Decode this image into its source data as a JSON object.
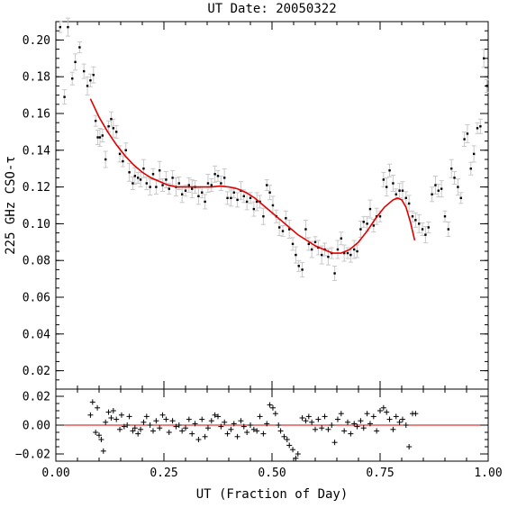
{
  "chart_data": [
    {
      "type": "scatter",
      "panel": "main",
      "title": "UT Date: 20050322",
      "ylabel": "225 GHz CSO-τ",
      "xlabel": "",
      "xlim": [
        0,
        1
      ],
      "ylim": [
        0.01,
        0.21
      ],
      "xticks": [
        0,
        0.25,
        0.5,
        0.75,
        1
      ],
      "yticks": [
        0.02,
        0.04,
        0.06,
        0.08,
        0.1,
        0.12,
        0.14,
        0.16,
        0.18,
        0.2
      ],
      "ytick_labels": [
        "0.02",
        "0.04",
        "0.06",
        "0.08",
        "0.10",
        "0.12",
        "0.14",
        "0.16",
        "0.18",
        "0.20"
      ],
      "grid": false,
      "series": [
        {
          "marker": "point-with-errorbar",
          "color": "#000000",
          "errorbar_color": "#c8c8c8",
          "x": [
            0.01,
            0.02,
            0.028,
            0.038,
            0.045,
            0.055,
            0.065,
            0.073,
            0.08,
            0.087,
            0.092,
            0.097,
            0.102,
            0.108,
            0.115,
            0.122,
            0.128,
            0.133,
            0.14,
            0.148,
            0.155,
            0.162,
            0.17,
            0.178,
            0.183,
            0.19,
            0.196,
            0.203,
            0.21,
            0.218,
            0.225,
            0.232,
            0.24,
            0.247,
            0.255,
            0.262,
            0.27,
            0.278,
            0.285,
            0.292,
            0.3,
            0.308,
            0.315,
            0.322,
            0.33,
            0.338,
            0.345,
            0.352,
            0.36,
            0.368,
            0.375,
            0.382,
            0.39,
            0.397,
            0.405,
            0.412,
            0.42,
            0.428,
            0.435,
            0.442,
            0.45,
            0.458,
            0.465,
            0.472,
            0.48,
            0.488,
            0.495,
            0.502,
            0.51,
            0.517,
            0.525,
            0.532,
            0.54,
            0.548,
            0.555,
            0.562,
            0.57,
            0.578,
            0.585,
            0.592,
            0.6,
            0.607,
            0.615,
            0.622,
            0.63,
            0.638,
            0.645,
            0.652,
            0.66,
            0.667,
            0.675,
            0.682,
            0.69,
            0.697,
            0.705,
            0.712,
            0.72,
            0.727,
            0.735,
            0.742,
            0.75,
            0.758,
            0.765,
            0.772,
            0.78,
            0.787,
            0.795,
            0.802,
            0.81,
            0.817,
            0.825,
            0.832,
            0.84,
            0.848,
            0.855,
            0.862,
            0.87,
            0.878,
            0.885,
            0.892,
            0.9,
            0.908,
            0.915,
            0.922,
            0.93,
            0.937,
            0.945,
            0.952,
            0.96,
            0.967,
            0.975,
            0.982,
            0.99,
            0.997
          ],
          "y": [
            0.207,
            0.169,
            0.207,
            0.179,
            0.188,
            0.196,
            0.183,
            0.175,
            0.178,
            0.181,
            0.156,
            0.147,
            0.147,
            0.148,
            0.135,
            0.153,
            0.157,
            0.152,
            0.15,
            0.138,
            0.134,
            0.14,
            0.128,
            0.122,
            0.126,
            0.125,
            0.124,
            0.13,
            0.122,
            0.12,
            0.127,
            0.12,
            0.129,
            0.121,
            0.124,
            0.119,
            0.125,
            0.12,
            0.122,
            0.116,
            0.118,
            0.121,
            0.119,
            0.12,
            0.115,
            0.117,
            0.112,
            0.122,
            0.121,
            0.127,
            0.126,
            0.122,
            0.125,
            0.114,
            0.114,
            0.117,
            0.113,
            0.118,
            0.115,
            0.112,
            0.114,
            0.108,
            0.112,
            0.112,
            0.104,
            0.121,
            0.117,
            0.11,
            0.104,
            0.098,
            0.096,
            0.103,
            0.097,
            0.089,
            0.083,
            0.077,
            0.075,
            0.097,
            0.089,
            0.086,
            0.09,
            0.087,
            0.083,
            0.086,
            0.082,
            0.084,
            0.073,
            0.086,
            0.092,
            0.084,
            0.084,
            0.083,
            0.086,
            0.085,
            0.097,
            0.101,
            0.1,
            0.108,
            0.099,
            0.104,
            0.104,
            0.124,
            0.12,
            0.129,
            0.122,
            0.116,
            0.118,
            0.118,
            0.114,
            0.111,
            0.104,
            0.102,
            0.1,
            0.097,
            0.094,
            0.098,
            0.116,
            0.121,
            0.118,
            0.119,
            0.104,
            0.097,
            0.13,
            0.125,
            0.12,
            0.114,
            0.146,
            0.149,
            0.13,
            0.138,
            0.152,
            0.153,
            0.19,
            0.175
          ]
        },
        {
          "type": "line",
          "role": "fit",
          "color": "#e00000",
          "x": [
            0.08,
            0.1,
            0.12,
            0.14,
            0.16,
            0.18,
            0.2,
            0.22,
            0.24,
            0.26,
            0.28,
            0.3,
            0.32,
            0.34,
            0.36,
            0.38,
            0.4,
            0.42,
            0.44,
            0.46,
            0.48,
            0.5,
            0.52,
            0.54,
            0.56,
            0.58,
            0.6,
            0.62,
            0.64,
            0.66,
            0.68,
            0.7,
            0.72,
            0.74,
            0.76,
            0.78,
            0.79,
            0.8,
            0.81,
            0.82,
            0.83
          ],
          "y": [
            0.168,
            0.158,
            0.15,
            0.143,
            0.137,
            0.132,
            0.128,
            0.125,
            0.123,
            0.121,
            0.12,
            0.12,
            0.12,
            0.12,
            0.12,
            0.1205,
            0.12,
            0.119,
            0.117,
            0.114,
            0.11,
            0.106,
            0.102,
            0.098,
            0.094,
            0.091,
            0.088,
            0.086,
            0.084,
            0.084,
            0.086,
            0.09,
            0.096,
            0.103,
            0.109,
            0.113,
            0.114,
            0.113,
            0.109,
            0.101,
            0.091
          ]
        }
      ]
    },
    {
      "type": "scatter",
      "panel": "residuals",
      "xlabel": "UT (Fraction of Day)",
      "ylabel": "",
      "xlim": [
        0,
        1
      ],
      "ylim": [
        -0.025,
        0.025
      ],
      "xticks": [
        0,
        0.25,
        0.5,
        0.75,
        1
      ],
      "xtick_labels": [
        "0.00",
        "0.25",
        "0.50",
        "0.75",
        "1.00"
      ],
      "yticks": [
        -0.02,
        0.0,
        0.02
      ],
      "ytick_labels": [
        "−0.02",
        "0.00",
        "0.02"
      ],
      "reference_line": {
        "y": 0,
        "color": "#e00000"
      },
      "grid": false,
      "series": [
        {
          "marker": "plus",
          "color": "#000000",
          "x": [
            0.08,
            0.085,
            0.092,
            0.096,
            0.1,
            0.105,
            0.11,
            0.115,
            0.122,
            0.128,
            0.133,
            0.14,
            0.148,
            0.152,
            0.158,
            0.165,
            0.17,
            0.178,
            0.183,
            0.19,
            0.196,
            0.203,
            0.21,
            0.218,
            0.225,
            0.232,
            0.24,
            0.247,
            0.255,
            0.262,
            0.27,
            0.278,
            0.285,
            0.292,
            0.3,
            0.308,
            0.315,
            0.322,
            0.33,
            0.338,
            0.345,
            0.352,
            0.36,
            0.368,
            0.375,
            0.382,
            0.39,
            0.397,
            0.405,
            0.412,
            0.42,
            0.428,
            0.435,
            0.442,
            0.45,
            0.458,
            0.465,
            0.472,
            0.48,
            0.488,
            0.495,
            0.502,
            0.508,
            0.515,
            0.52,
            0.528,
            0.535,
            0.54,
            0.548,
            0.555,
            0.56,
            0.57,
            0.578,
            0.585,
            0.592,
            0.6,
            0.607,
            0.615,
            0.622,
            0.63,
            0.638,
            0.645,
            0.652,
            0.66,
            0.667,
            0.675,
            0.682,
            0.69,
            0.697,
            0.705,
            0.712,
            0.72,
            0.727,
            0.735,
            0.742,
            0.75,
            0.758,
            0.765,
            0.772,
            0.78,
            0.787,
            0.795,
            0.802,
            0.81,
            0.817,
            0.825,
            0.832
          ],
          "y": [
            0.007,
            0.016,
            -0.005,
            0.012,
            -0.007,
            -0.01,
            -0.018,
            0.002,
            0.009,
            0.005,
            0.01,
            0.004,
            -0.003,
            0.007,
            -0.001,
            0.0,
            0.006,
            -0.004,
            -0.002,
            -0.006,
            -0.003,
            0.002,
            0.006,
            0.0,
            -0.004,
            0.003,
            -0.002,
            0.007,
            0.004,
            -0.005,
            0.003,
            -0.001,
            0.0,
            -0.004,
            -0.002,
            0.004,
            -0.006,
            0.001,
            -0.01,
            0.004,
            -0.008,
            -0.002,
            0.003,
            0.007,
            0.006,
            -0.001,
            0.002,
            -0.006,
            -0.003,
            0.001,
            -0.008,
            0.003,
            -0.001,
            -0.005,
            0.0,
            -0.003,
            -0.004,
            0.006,
            -0.006,
            0.001,
            0.014,
            0.012,
            0.008,
            0.0,
            -0.004,
            -0.008,
            -0.01,
            -0.014,
            -0.017,
            -0.023,
            -0.02,
            0.005,
            0.003,
            0.006,
            0.002,
            -0.003,
            0.004,
            -0.002,
            0.006,
            -0.003,
            0.0,
            -0.012,
            0.004,
            0.008,
            -0.004,
            0.002,
            -0.006,
            0.001,
            -0.001,
            0.003,
            -0.002,
            0.008,
            0.001,
            0.006,
            -0.004,
            0.01,
            0.012,
            0.009,
            0.004,
            -0.003,
            0.006,
            0.002,
            0.004,
            0.0,
            -0.015,
            0.008,
            0.008
          ]
        }
      ]
    }
  ]
}
